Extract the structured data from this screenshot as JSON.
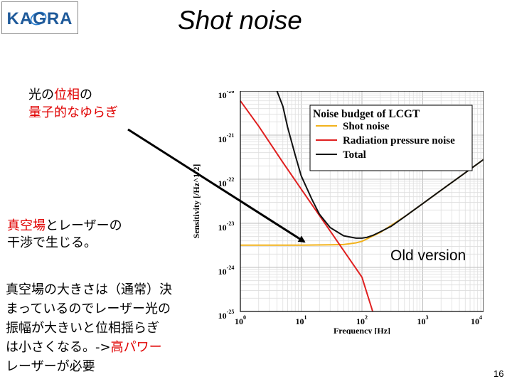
{
  "slide": {
    "title": "Shot noise",
    "page_number": "16",
    "logo_text": "KAGRA"
  },
  "notes": {
    "phase": {
      "pre": "光の",
      "red": "位相",
      "post": "の"
    },
    "quantum": {
      "red": "量子的なゆらぎ"
    },
    "vacuum": {
      "red": "真空場",
      "post": "とレーザーの"
    },
    "interference": "干渉で生じる。",
    "para_lines": [
      "真空場の大きさは（通常）決",
      "まっているのでレーザー光の",
      "振幅が大きいと位相揺らぎ"
    ],
    "para_line4": {
      "pre": "は小さくなる。->",
      "red": "高パワー"
    },
    "para_line5": "レーザーが必要"
  },
  "annotation": "Old version",
  "chart_data": {
    "type": "line",
    "title": "Noise budget of LCGT",
    "xlabel": "Frequency [Hz]",
    "ylabel": "Sensitivity [/Hz^1/2]",
    "x_scale": "log",
    "y_scale": "log",
    "xlim": [
      1,
      10000
    ],
    "ylim": [
      1e-25,
      1e-20
    ],
    "x_ticks": [
      {
        "base": "10",
        "exp": "0"
      },
      {
        "base": "10",
        "exp": "1"
      },
      {
        "base": "10",
        "exp": "2"
      },
      {
        "base": "10",
        "exp": "3"
      },
      {
        "base": "10",
        "exp": "4"
      }
    ],
    "y_ticks": [
      {
        "base": "10",
        "exp": "-20"
      },
      {
        "base": "10",
        "exp": "-21"
      },
      {
        "base": "10",
        "exp": "-22"
      },
      {
        "base": "10",
        "exp": "-23"
      },
      {
        "base": "10",
        "exp": "-24"
      },
      {
        "base": "10",
        "exp": "-25"
      }
    ],
    "grid": true,
    "legend_position": "top-right",
    "series": [
      {
        "name": "Shot noise",
        "color": "#f2b21c",
        "x": [
          1,
          10,
          30,
          50,
          80,
          100,
          200,
          500,
          1000,
          2000,
          5000,
          10000
        ],
        "y": [
          3.2e-24,
          3.2e-24,
          3.25e-24,
          3.3e-24,
          3.6e-24,
          3.9e-24,
          6.2e-24,
          1.4e-23,
          2.8e-23,
          5.6e-23,
          1.4e-22,
          2.8e-22
        ]
      },
      {
        "name": "Radiation pressure noise",
        "color": "#e02020",
        "x": [
          1,
          2,
          5,
          10,
          20,
          30,
          50,
          80,
          100,
          150
        ],
        "y": [
          6e-21,
          1.6e-21,
          2.4e-22,
          6e-23,
          1.5e-23,
          6.7e-24,
          2.4e-24,
          9.4e-25,
          6e-25,
          1e-25
        ]
      },
      {
        "name": "Total",
        "color": "#111111",
        "x": [
          4,
          5,
          6,
          8,
          10,
          15,
          20,
          30,
          50,
          80,
          100,
          120,
          150,
          200,
          300,
          500,
          1000,
          2000,
          5000,
          10000
        ],
        "y": [
          1e-20,
          4.5e-21,
          1.5e-21,
          3.5e-22,
          1.2e-22,
          3.5e-23,
          1.6e-23,
          8e-24,
          5.2e-24,
          4.6e-24,
          4.6e-24,
          4.8e-24,
          5.3e-24,
          6.4e-24,
          8.5e-24,
          1.4e-23,
          2.8e-23,
          5.6e-23,
          1.4e-22,
          2.8e-22
        ]
      }
    ]
  }
}
